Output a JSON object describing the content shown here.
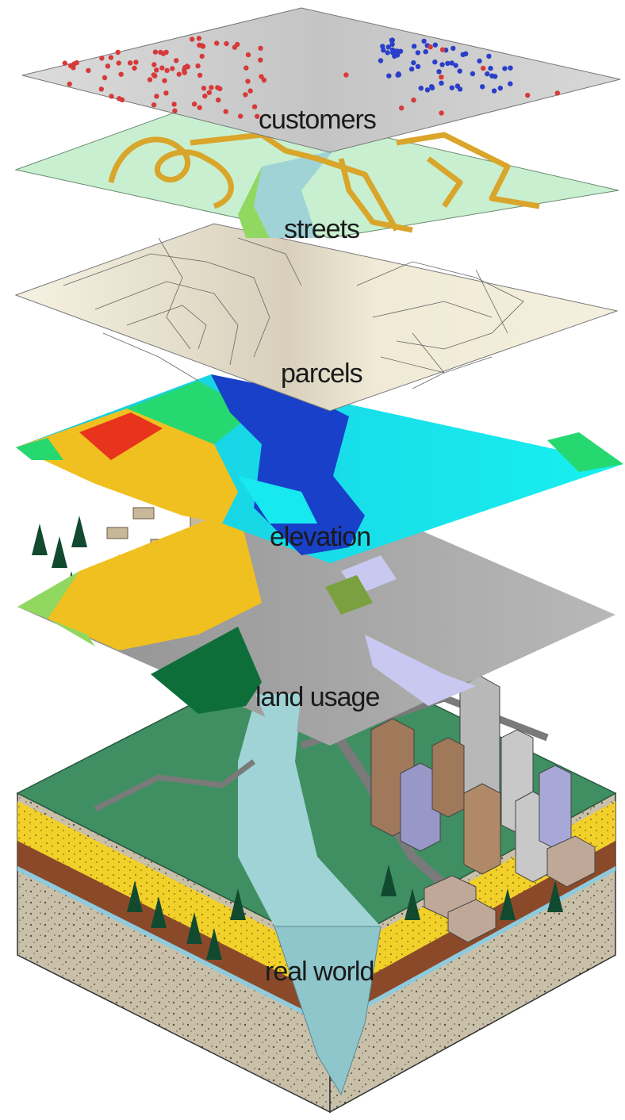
{
  "diagram": {
    "layers": [
      {
        "id": "customers",
        "label": "customers"
      },
      {
        "id": "streets",
        "label": "streets"
      },
      {
        "id": "parcels",
        "label": "parcels"
      },
      {
        "id": "elevation",
        "label": "elevation"
      },
      {
        "id": "land-usage",
        "label": "land usage"
      },
      {
        "id": "real-world",
        "label": "real world"
      }
    ]
  },
  "colors": {
    "customers_plane": "#d4d4d4",
    "customer_dot_red": "#d63a3a",
    "customer_dot_blue": "#2a3fc9",
    "streets_plane": "#c8f0d0",
    "street_line": "#d9a52a",
    "river": "#9fd3d6",
    "parcels_plane": "#f4f0dc",
    "parcel_line": "#777777",
    "elev_red": "#e8341c",
    "elev_yellow": "#f0c020",
    "elev_green": "#26d870",
    "elev_blue": "#1840c8",
    "elev_cyan": "#18e8f0",
    "land_yellow": "#f0c020",
    "land_darkgreen": "#0e6e3a",
    "land_lightgreen": "#90d860",
    "land_gray": "#a0a0a0",
    "land_lavender": "#c8c8f0",
    "terrain_grass": "#3d8f60",
    "soil_yellow": "#f2d02a",
    "soil_brown": "#8a4a2a",
    "soil_gravel": "#c8bfa8"
  }
}
